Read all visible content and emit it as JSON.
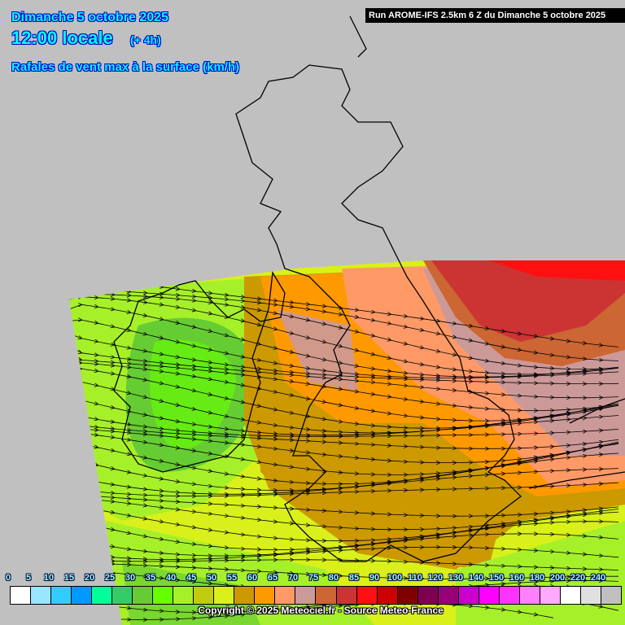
{
  "header": {
    "date": "Dimanche 5 octobre 2025",
    "time": "12:00 locale",
    "lead": "(+ 4h)",
    "parameter": "Rafales de vent max à la surface (km/h)",
    "run": "Run AROME-IFS 2.5km 6 Z du Dimanche 5 octobre 2025"
  },
  "legend": {
    "labels": [
      "0",
      "5",
      "10",
      "15",
      "20",
      "25",
      "30",
      "35",
      "40",
      "45",
      "50",
      "55",
      "60",
      "65",
      "70",
      "75",
      "80",
      "85",
      "90",
      "100",
      "110",
      "120",
      "130",
      "140",
      "150",
      "160",
      "180",
      "200",
      "220",
      "240"
    ],
    "colors": [
      "#ffffff",
      "#99e6ff",
      "#33ccff",
      "#0099ff",
      "#00ff99",
      "#33cc66",
      "#66cc33",
      "#66ff00",
      "#a6f02a",
      "#bfcc10",
      "#d9f01a",
      "#cc9900",
      "#ff9900",
      "#ff9966",
      "#cc9999",
      "#cc6633",
      "#cc3333",
      "#ff1010",
      "#cc0000",
      "#800000",
      "#800050",
      "#990077",
      "#cc00cc",
      "#ff00ff",
      "#ff33ff",
      "#ff80ff",
      "#ffaaff",
      "#ffffff",
      "#e0e0e0",
      "#c0c0c0"
    ]
  },
  "copyright": "Copyright © 2025 Meteociel.fr - Source Meteo-France"
}
